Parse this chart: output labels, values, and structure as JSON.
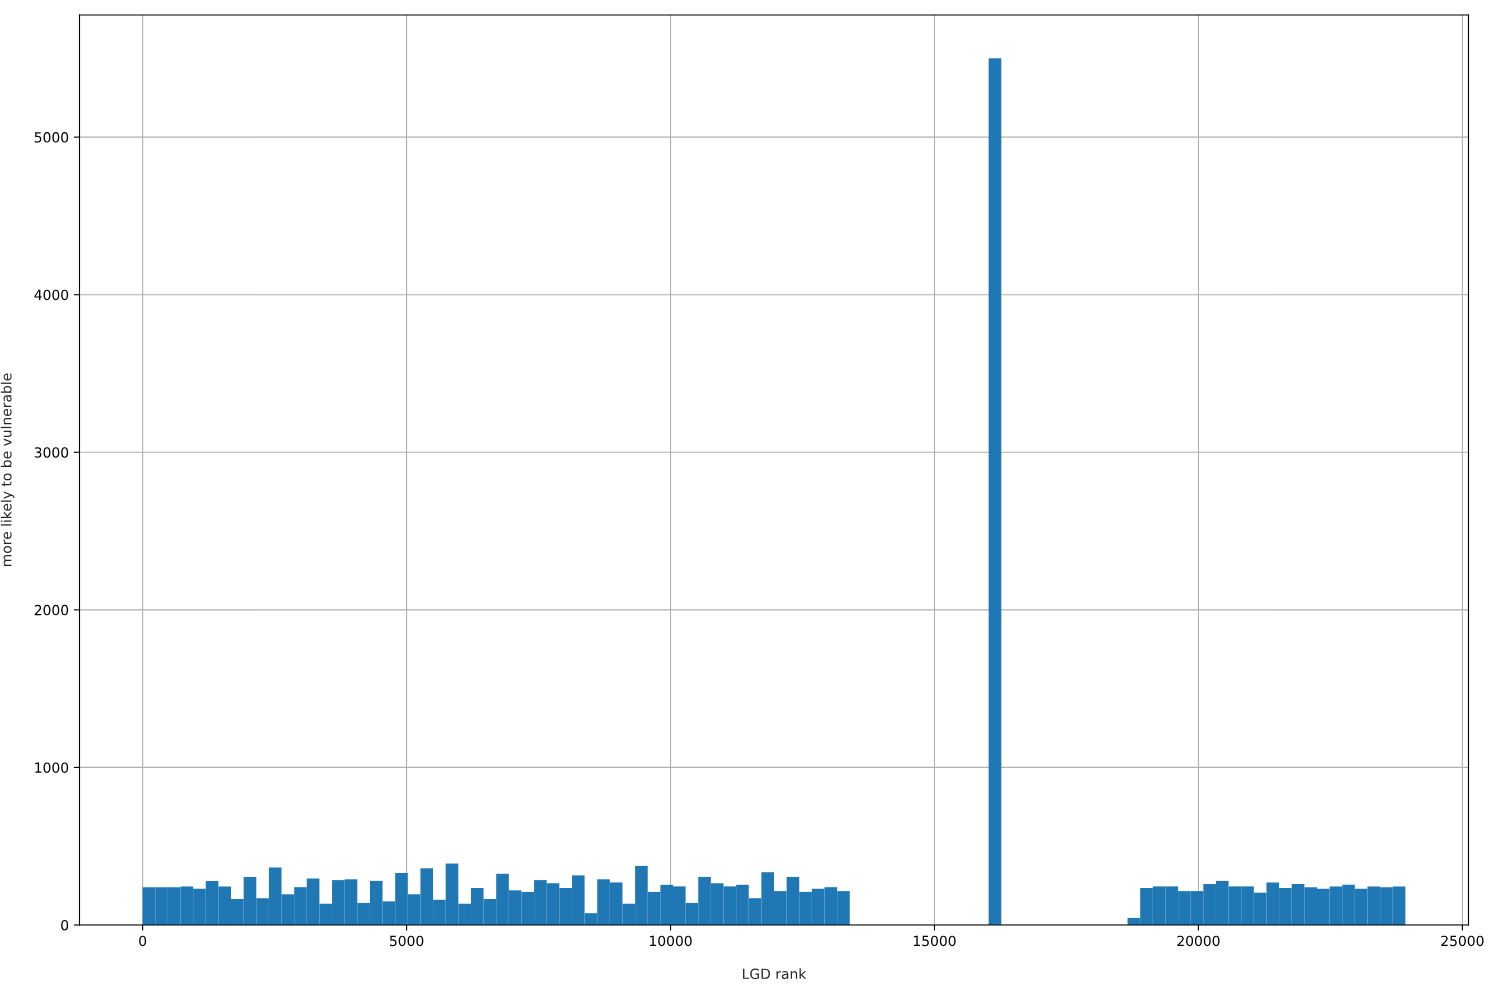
{
  "chart_data": {
    "type": "histogram",
    "xlabel": "LGD rank",
    "ylabel": "more likely to be vulnerable",
    "color": "#1f77b4",
    "bins": [
      0,
      239.2,
      478.4,
      717.6,
      956.8,
      1196,
      1435.2,
      1674.4,
      1913.6,
      2152.8,
      2392,
      2631.2,
      2870.4,
      3109.6,
      3348.8,
      3588,
      3827.2,
      4066.4,
      4305.6,
      4544.8,
      4784,
      5023.2,
      5262.4,
      5501.6,
      5740.8,
      5980,
      6219.2,
      6458.4,
      6697.6,
      6936.8,
      7176,
      7415.2,
      7654.4,
      7893.6,
      8132.8,
      8372,
      8611.2,
      8850.4,
      9089.6,
      9328.8,
      9568,
      9807.2,
      10046.4,
      10285.6,
      10524.8,
      10764,
      11003.2,
      11242.4,
      11481.6,
      11720.8,
      11960,
      12199.2,
      12438.4,
      12677.6,
      12916.8,
      13156,
      13395.2,
      13634.4,
      13873.6,
      14112.8,
      14352,
      14591.2,
      14830.4,
      15069.6,
      15308.8,
      15548,
      15787.2,
      16026.4,
      16265.6,
      16504.8,
      16744,
      16983.2,
      17222.4,
      17461.6,
      17700.8,
      17940,
      18179.2,
      18418.4,
      18657.6,
      18896.8,
      19136,
      19375.2,
      19614.4,
      19853.6,
      20092.8,
      20332,
      20571.2,
      20810.4,
      21049.6,
      21288.8,
      21528,
      21767.2,
      22006.4,
      22245.6,
      22484.8,
      22724,
      22963.2,
      23202.4,
      23441.6,
      23680.8,
      23920
    ],
    "values": [
      240,
      240,
      240,
      245,
      230,
      280,
      245,
      165,
      305,
      170,
      365,
      195,
      240,
      295,
      135,
      285,
      290,
      140,
      280,
      150,
      330,
      195,
      360,
      160,
      390,
      135,
      235,
      165,
      325,
      220,
      210,
      285,
      265,
      235,
      315,
      75,
      290,
      270,
      135,
      375,
      210,
      255,
      245,
      140,
      305,
      265,
      245,
      255,
      170,
      335,
      215,
      305,
      210,
      230,
      240,
      215,
      0,
      0,
      0,
      0,
      0,
      0,
      0,
      0,
      0,
      0,
      0,
      5500,
      0,
      0,
      0,
      0,
      0,
      0,
      0,
      0,
      0,
      0,
      45,
      235,
      245,
      245,
      215,
      215,
      260,
      280,
      245,
      245,
      205,
      270,
      235,
      260,
      240,
      230,
      245,
      255,
      230,
      245,
      240,
      245
    ],
    "xlim": [
      -1196,
      25116
    ],
    "xticks": [
      0,
      5000,
      10000,
      15000,
      20000,
      25000
    ],
    "ylim": [
      0,
      5775
    ],
    "yticks": [
      0,
      1000,
      2000,
      3000,
      4000,
      5000
    ],
    "grid": true
  }
}
